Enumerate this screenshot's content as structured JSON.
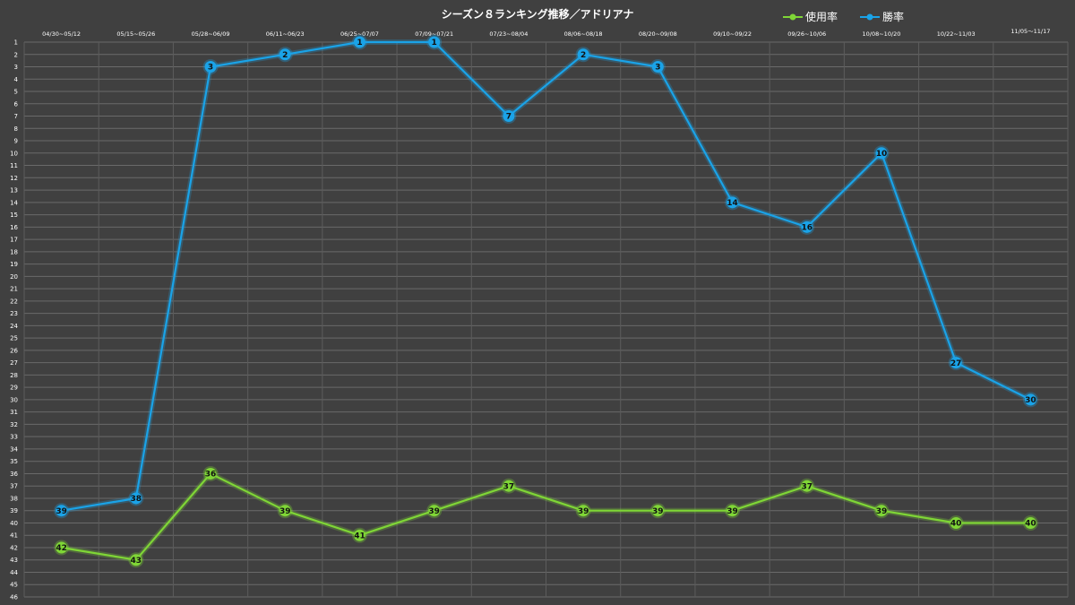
{
  "chart_data": {
    "type": "line",
    "title": "シーズン８ランキング推移／アドリアナ",
    "categories": [
      "04/30~05/12",
      "05/15~05/26",
      "05/28~06/09",
      "06/11~06/23",
      "06/25~07/07",
      "07/09~07/21",
      "07/23~08/04",
      "08/06~08/18",
      "08/20~09/08",
      "09/10~09/22",
      "09/26~10/06",
      "10/08~10/20",
      "10/22~11/03",
      "11/05～11/17"
    ],
    "series": [
      {
        "name": "使用率",
        "color": "#7fd636",
        "values": [
          42,
          43,
          36,
          39,
          41,
          39,
          37,
          39,
          39,
          39,
          37,
          39,
          40,
          40
        ]
      },
      {
        "name": "勝率",
        "color": "#1aa3e8",
        "values": [
          39,
          38,
          3,
          2,
          1,
          1,
          7,
          2,
          3,
          14,
          16,
          10,
          27,
          30
        ]
      }
    ],
    "y_axis": {
      "reversed": true,
      "range": [
        1,
        46
      ],
      "ticks": [
        1,
        2,
        3,
        4,
        5,
        6,
        7,
        8,
        9,
        10,
        11,
        12,
        13,
        14,
        15,
        16,
        17,
        18,
        19,
        20,
        21,
        22,
        23,
        24,
        25,
        26,
        27,
        28,
        29,
        30,
        31,
        32,
        33,
        34,
        35,
        36,
        37,
        38,
        39,
        40,
        41,
        42,
        43,
        44,
        45,
        46
      ]
    },
    "x_axis_position": "top",
    "legend_position": "top-right",
    "grid": true
  }
}
